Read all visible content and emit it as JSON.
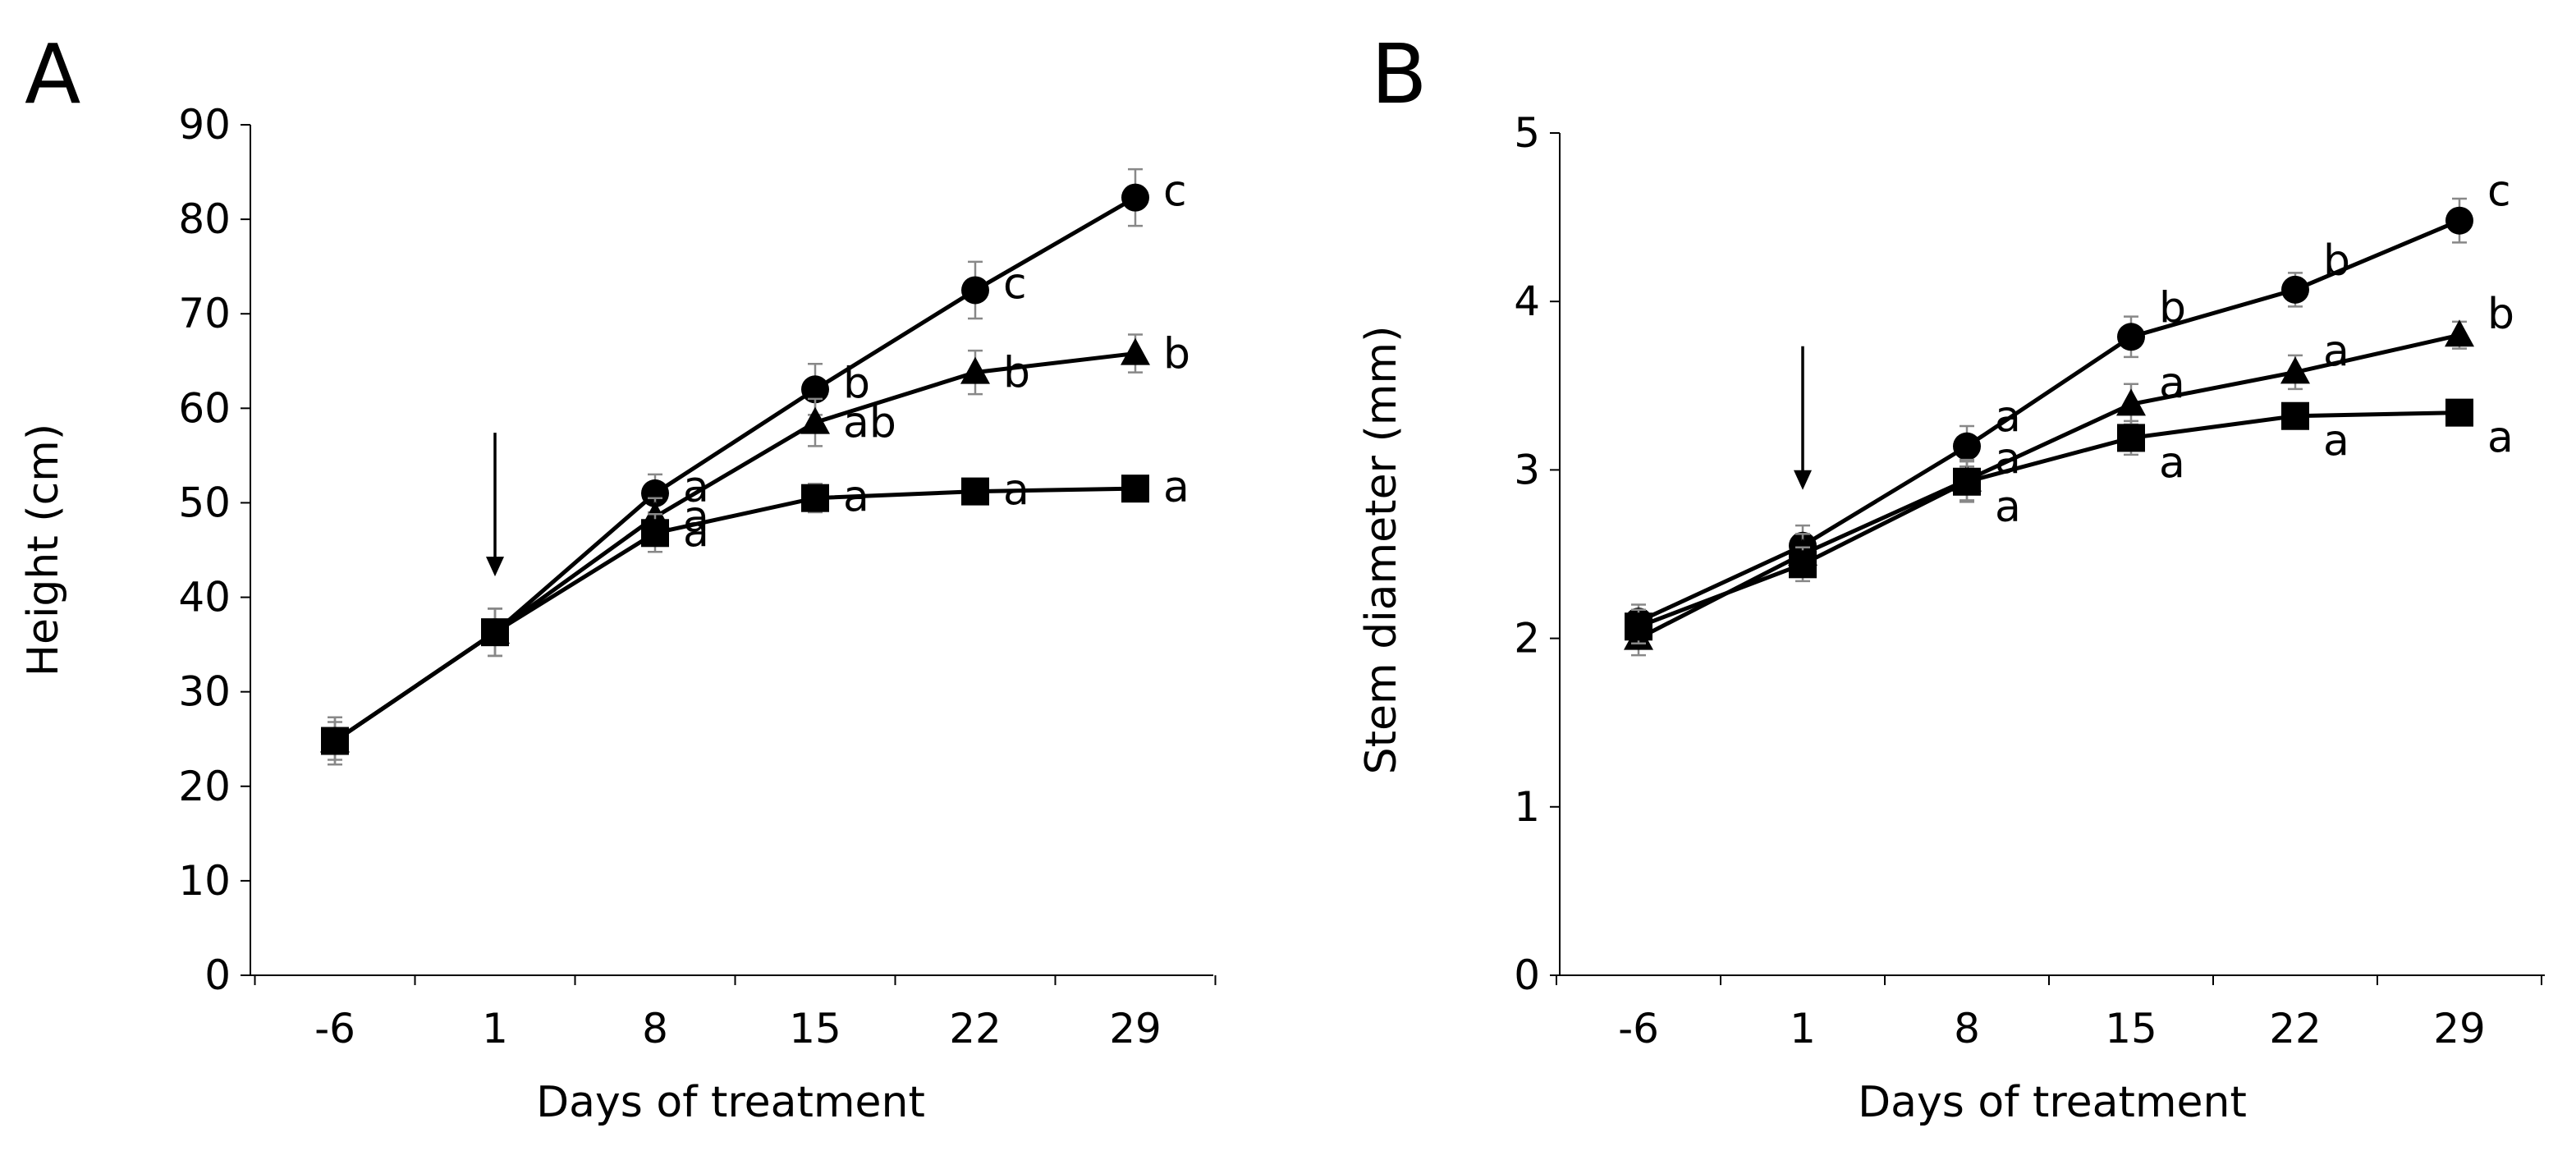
{
  "chart_data": [
    {
      "type": "line",
      "panel_label": "A",
      "xlabel": "Days of treatment",
      "ylabel": "Height (cm)",
      "categories": [
        "-6",
        "1",
        "8",
        "15",
        "22",
        "29"
      ],
      "ylim": [
        0,
        90
      ],
      "yticks": [
        "0",
        "10",
        "20",
        "30",
        "40",
        "50",
        "60",
        "70",
        "80",
        "90"
      ],
      "grid": false,
      "arrow_at": "1",
      "series": [
        {
          "marker": "circle",
          "values": [
            24.8,
            36.3,
            51.0,
            62.0,
            72.5,
            82.3
          ],
          "errors": [
            2.5,
            2.5,
            2.0,
            2.7,
            3.0,
            3.0
          ],
          "labels": [
            "",
            "",
            "a",
            "b",
            "c",
            "c"
          ]
        },
        {
          "marker": "triangle",
          "values": [
            24.8,
            36.3,
            48.5,
            58.5,
            63.8,
            65.8
          ],
          "errors": [
            2.5,
            2.5,
            2.0,
            2.5,
            2.3,
            2.0
          ],
          "labels": [
            "",
            "",
            "a",
            "ab",
            "b",
            "b"
          ]
        },
        {
          "marker": "square",
          "values": [
            24.8,
            36.3,
            46.8,
            50.5,
            51.2,
            51.5
          ],
          "errors": [
            2.0,
            2.5,
            2.0,
            1.5,
            1.0,
            1.0
          ],
          "labels": [
            "",
            "",
            "a",
            "a",
            "a",
            "a"
          ]
        }
      ]
    },
    {
      "type": "line",
      "panel_label": "B",
      "xlabel": "Days of treatment",
      "ylabel": "Stem diameter (mm)",
      "categories": [
        "-6",
        "1",
        "8",
        "15",
        "22",
        "29"
      ],
      "ylim": [
        0,
        5
      ],
      "yticks": [
        "0",
        "1",
        "2",
        "3",
        "4",
        "5"
      ],
      "grid": false,
      "arrow_at": "1",
      "series": [
        {
          "marker": "circle",
          "values": [
            2.1,
            2.55,
            3.14,
            3.79,
            4.07,
            4.48
          ],
          "errors": [
            0.1,
            0.12,
            0.12,
            0.12,
            0.1,
            0.13
          ],
          "labels": [
            "",
            "",
            "a",
            "b",
            "b",
            "c"
          ]
        },
        {
          "marker": "triangle",
          "values": [
            2.0,
            2.5,
            2.94,
            3.39,
            3.58,
            3.8
          ],
          "errors": [
            0.1,
            0.12,
            0.12,
            0.12,
            0.1,
            0.08
          ],
          "labels": [
            "",
            "",
            "a",
            "a",
            "a",
            "b"
          ]
        },
        {
          "marker": "square",
          "values": [
            2.07,
            2.44,
            2.93,
            3.19,
            3.32,
            3.34
          ],
          "errors": [
            0.1,
            0.1,
            0.12,
            0.1,
            0.06,
            0.04
          ],
          "labels": [
            "",
            "",
            "a",
            "a",
            "a",
            "a"
          ]
        }
      ]
    }
  ]
}
